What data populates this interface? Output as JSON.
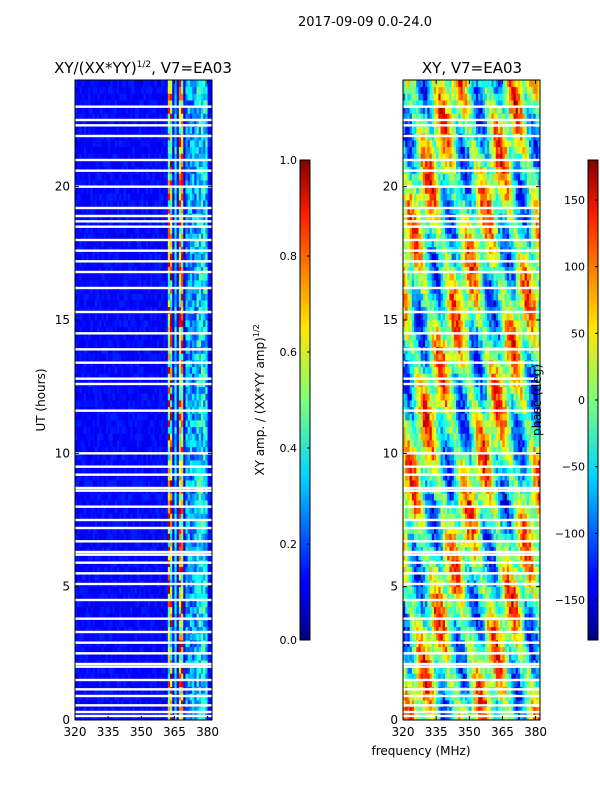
{
  "chart_data": [
    {
      "type": "heatmap",
      "suptitle": "2017-09-09 0.0-24.0",
      "title_main": "XY/(XX*YY)",
      "title_exp": "1/2",
      "title_rest": ", V7=EA03",
      "xlabel": "",
      "ylabel": "UT (hours)",
      "xlim": [
        320,
        382
      ],
      "ylim": [
        0,
        24
      ],
      "xticks": [
        320,
        335,
        350,
        365,
        380
      ],
      "yticks": [
        0,
        5,
        10,
        15,
        20
      ],
      "colorbar": {
        "label_main": "XY amp. / (XX*YY amp)",
        "label_exp": "1/2",
        "range": [
          0.0,
          1.0
        ],
        "ticks": [
          "0.0",
          "0.2",
          "0.4",
          "0.6",
          "0.8",
          "1.0"
        ]
      },
      "colormap": "jet",
      "flagged_hours": [
        0.15,
        0.3,
        0.55,
        0.9,
        1.15,
        1.5,
        2.0,
        2.1,
        2.5,
        2.9,
        3.3,
        3.8,
        4.5,
        5.1,
        5.5,
        5.9,
        6.2,
        6.3,
        6.7,
        7.2,
        7.5,
        8.0,
        8.6,
        8.7,
        9.2,
        9.5,
        10.0,
        11.6,
        12.6,
        12.8,
        13.4,
        13.9,
        14.5,
        15.3,
        16.2,
        16.8,
        17.2,
        17.6,
        18.0,
        18.5,
        18.7,
        18.9,
        19.2,
        20.0,
        20.6,
        21.0,
        21.9,
        22.3,
        22.5,
        23.0
      ]
    },
    {
      "type": "heatmap",
      "title_main": "XY, V7=EA03",
      "xlabel": "frequency (MHz)",
      "ylabel": "",
      "xlim": [
        320,
        382
      ],
      "ylim": [
        0,
        24
      ],
      "xticks": [
        320,
        335,
        350,
        365,
        380
      ],
      "yticks": [
        0,
        5,
        10,
        15,
        20
      ],
      "colorbar": {
        "label_main": "phase (deg)",
        "range": [
          -180,
          180
        ],
        "ticks": [
          "−150",
          "−100",
          "−50",
          "0",
          "50",
          "100",
          "150"
        ]
      },
      "colormap": "jet",
      "flagged_hours": [
        0.15,
        0.3,
        0.55,
        0.9,
        1.15,
        1.5,
        2.0,
        2.1,
        2.5,
        2.9,
        3.3,
        3.8,
        4.5,
        5.1,
        5.5,
        5.9,
        6.2,
        6.3,
        6.7,
        7.2,
        7.5,
        8.0,
        8.6,
        8.7,
        9.2,
        9.5,
        10.0,
        11.6,
        12.6,
        12.8,
        13.4,
        13.9,
        14.5,
        15.3,
        16.2,
        16.8,
        17.2,
        17.6,
        18.0,
        18.5,
        18.7,
        18.9,
        19.2,
        20.0,
        20.6,
        21.0,
        21.9,
        22.3,
        22.5,
        23.0
      ]
    }
  ]
}
